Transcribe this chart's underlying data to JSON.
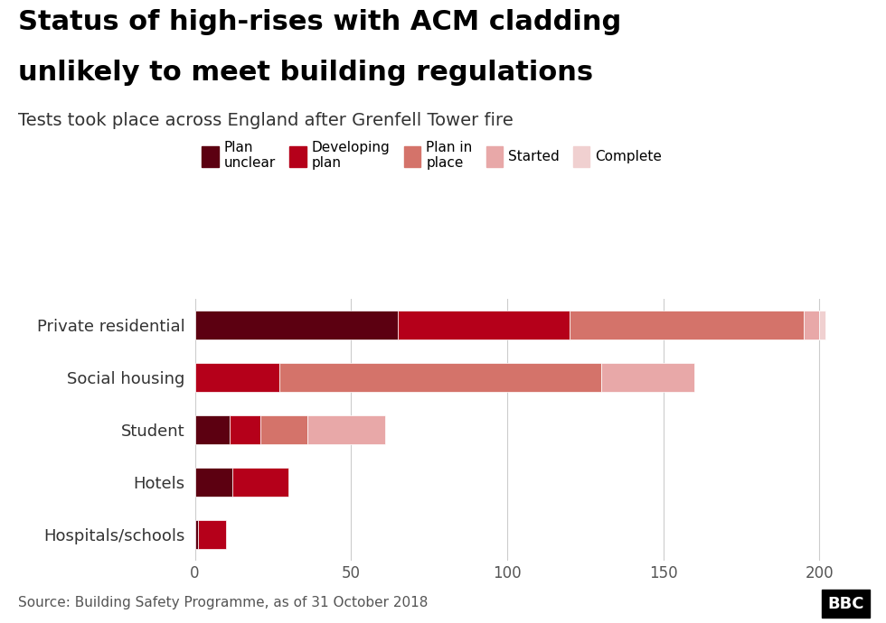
{
  "title_line1": "Status of high-rises with ACM cladding",
  "title_line2": "unlikely to meet building regulations",
  "subtitle": "Tests took place across England after Grenfell Tower fire",
  "source": "Source: Building Safety Programme, as of 31 October 2018",
  "categories": [
    "Private residential",
    "Social housing",
    "Student",
    "Hotels",
    "Hospitals/schools"
  ],
  "legend_labels": [
    "Plan\nunclear",
    "Developing\nplan",
    "Plan in\nplace",
    "Started",
    "Complete"
  ],
  "colors": [
    "#5c0011",
    "#b5001a",
    "#d4736a",
    "#e8a8a8",
    "#f0d0d0"
  ],
  "data": [
    [
      65,
      55,
      75,
      5,
      2
    ],
    [
      0,
      27,
      103,
      30,
      0
    ],
    [
      11,
      10,
      15,
      25,
      0
    ],
    [
      12,
      18,
      0,
      0,
      0
    ],
    [
      1,
      9,
      0,
      0,
      0
    ]
  ],
  "xlim": [
    0,
    210
  ],
  "xticks": [
    0,
    50,
    100,
    150,
    200
  ],
  "background_color": "#ffffff",
  "bar_height": 0.55,
  "title_fontsize": 22,
  "subtitle_fontsize": 14,
  "source_fontsize": 11,
  "label_fontsize": 13
}
